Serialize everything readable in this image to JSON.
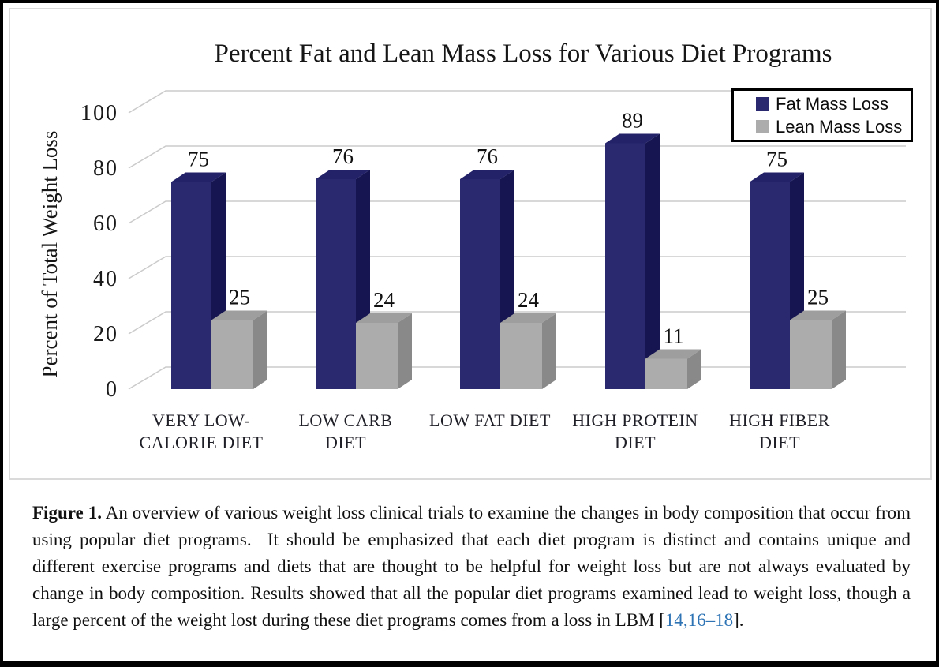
{
  "figure": {
    "title": "Percent Fat and Lean Mass Loss for Various Diet Programs",
    "y_axis_label": "Percent of Total Weight Loss",
    "legend": [
      {
        "label": "Fat Mass Loss",
        "color": "#2A2970"
      },
      {
        "label": "Lean Mass Loss",
        "color": "#ACACAC"
      }
    ]
  },
  "chart_data": {
    "type": "bar",
    "variant": "3d-clustered",
    "title": "Percent Fat and Lean Mass Loss for Various Diet Programs",
    "xlabel": "",
    "ylabel": "Percent of Total Weight Loss",
    "ylim": [
      0,
      100
    ],
    "yticks": [
      0,
      20,
      40,
      60,
      80,
      100
    ],
    "grid": true,
    "grid_color": "#CBCBCB",
    "legend_position": "top-right",
    "categories": [
      [
        "VERY LOW-",
        "CALORIE DIET"
      ],
      [
        "LOW CARB",
        "DIET"
      ],
      [
        "LOW FAT DIET"
      ],
      [
        "HIGH PROTEIN",
        "DIET"
      ],
      [
        "HIGH FIBER",
        "DIET"
      ]
    ],
    "series": [
      {
        "name": "Fat Mass Loss",
        "values": [
          75,
          76,
          76,
          89,
          75
        ],
        "colors": {
          "front": "#2A2970",
          "top": "#232269",
          "side": "#161552"
        }
      },
      {
        "name": "Lean Mass Loss",
        "values": [
          25,
          24,
          24,
          11,
          25
        ],
        "colors": {
          "front": "#ACACAC",
          "top": "#9E9E9E",
          "side": "#898989"
        }
      }
    ]
  },
  "caption": {
    "label": "Figure 1.",
    "text": " An overview of various weight loss clinical trials to examine the changes in body composition that occur from using popular diet programs.  It should be emphasized that each diet program is distinct and contains unique and different exercise programs and diets that are thought to be helpful for weight loss but are not always evaluated by change in body composition. Results showed that all the popular diet programs examined lead to weight loss, though a large percent of the weight lost during these diet programs comes from a loss in LBM ",
    "citation_open": "[",
    "citation": "14,16–18",
    "citation_close": "].",
    "link_color": "#2E74B5"
  }
}
